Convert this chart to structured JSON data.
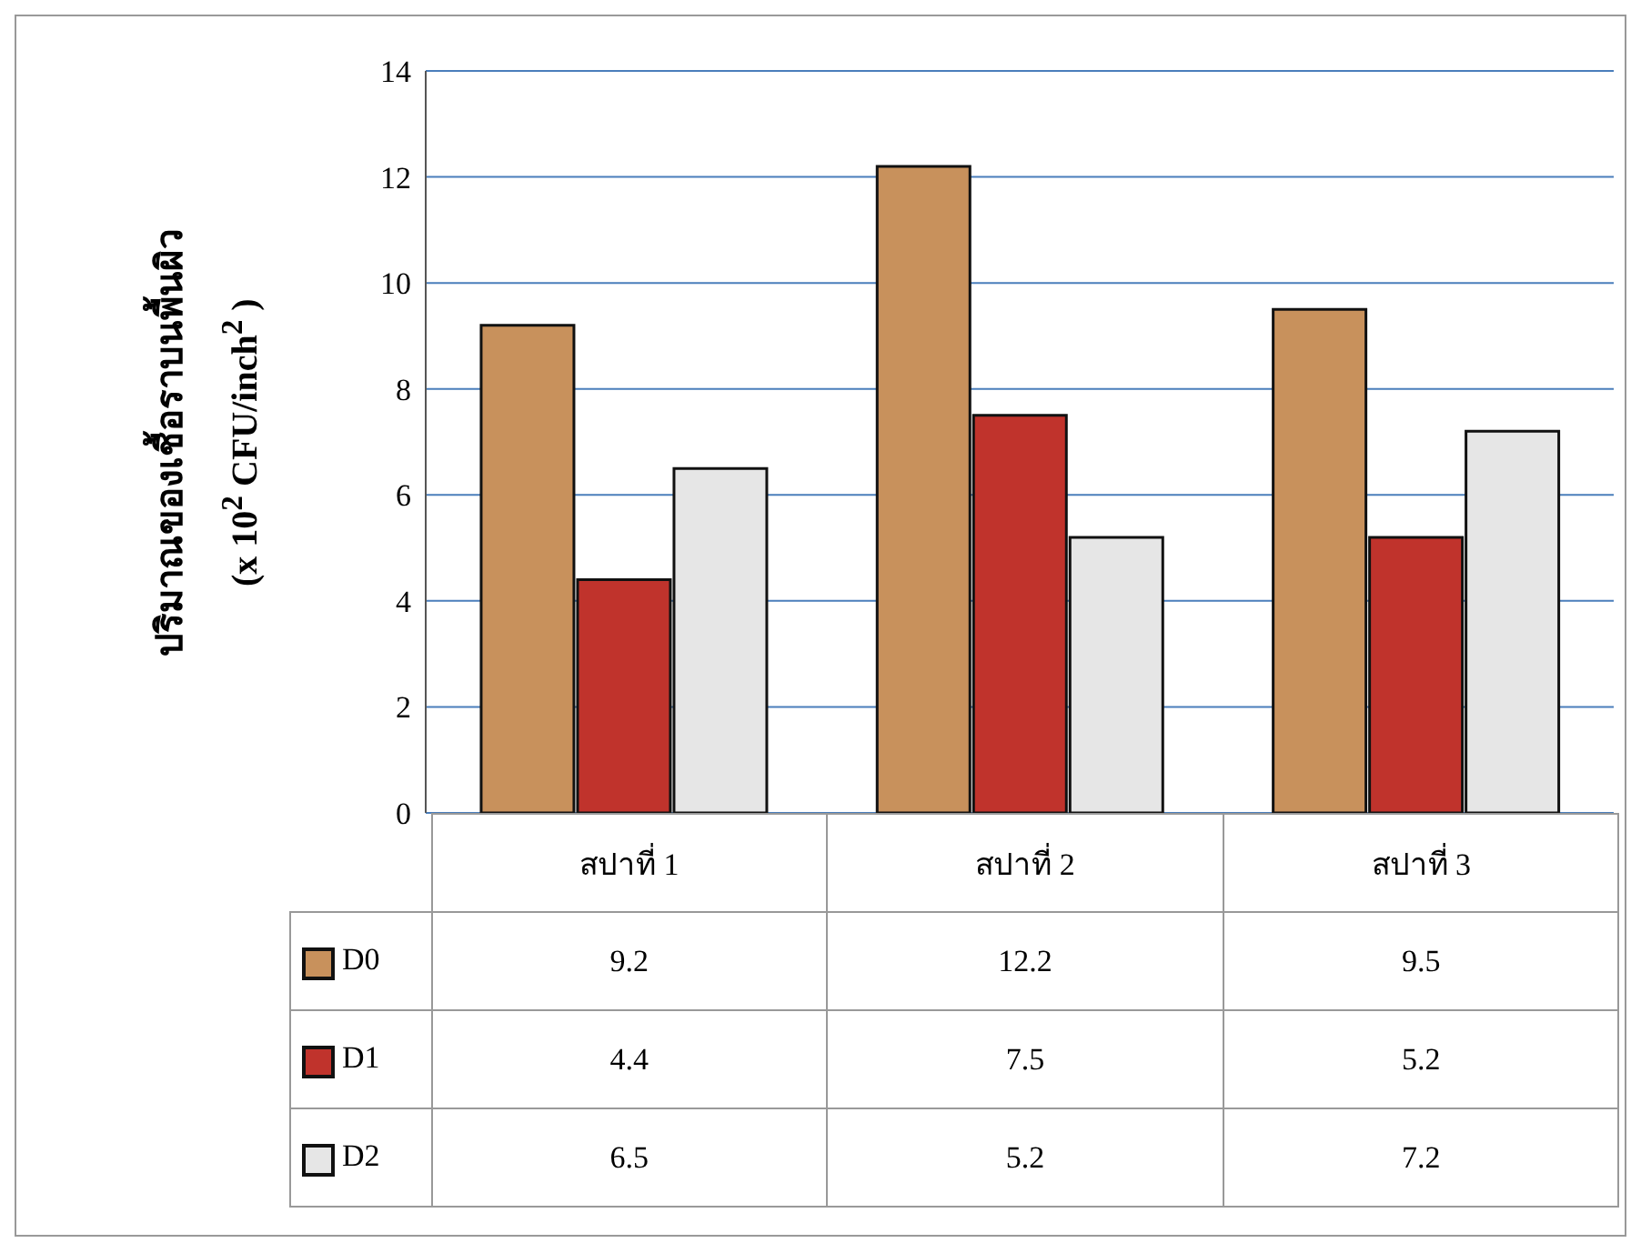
{
  "chart_data": {
    "type": "bar",
    "ylabel": "ปริมาณของเชื้อราบนพื้นผิว\n(x 10$^{2}$ CFU/inch$^{2}$ )",
    "categories": [
      "สปาที่ 1",
      "สปาที่ 2",
      "สปาที่ 3"
    ],
    "series": [
      {
        "name": "D0",
        "color": "#c8915c",
        "values": [
          9.2,
          12.2,
          9.5
        ]
      },
      {
        "name": "D1",
        "color": "#c0332c",
        "values": [
          4.4,
          7.5,
          5.2
        ]
      },
      {
        "name": "D2",
        "color": "#e6e6e6",
        "values": [
          6.5,
          5.2,
          7.2
        ]
      }
    ],
    "ylim": [
      0,
      14
    ],
    "yticks": [
      0,
      2,
      4,
      6,
      8,
      10,
      12,
      14
    ],
    "grid": "y",
    "legend": "bottom",
    "data_labels": true
  }
}
